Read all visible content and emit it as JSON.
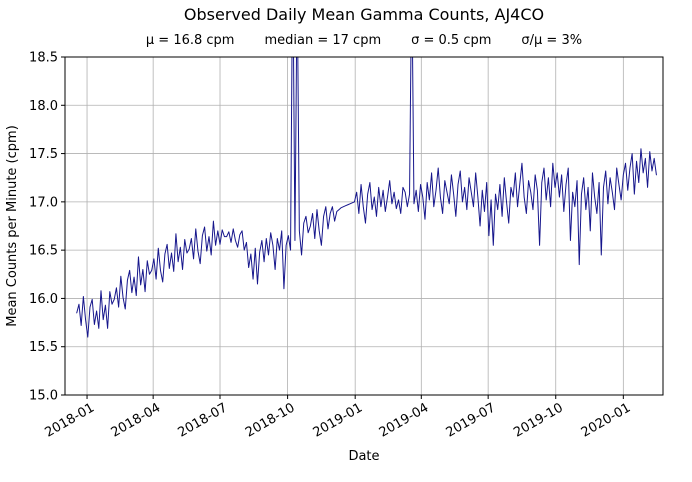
{
  "chart_data": {
    "type": "line",
    "title": "Observed Daily Mean Gamma Counts, AJ4CO",
    "stats": [
      "μ = 16.8 cpm",
      "median = 17 cpm",
      "σ = 0.5 cpm",
      "σ/μ = 3%"
    ],
    "xlabel": "Date",
    "ylabel": "Mean Counts per Minute (cpm)",
    "grid": true,
    "legend": "none",
    "line_color": "#16168c",
    "ylim": [
      15.0,
      18.5
    ],
    "y_ticks": [
      15.0,
      15.5,
      16.0,
      16.5,
      17.0,
      17.5,
      18.0,
      18.5
    ],
    "x_tick_labels": [
      "2018-01",
      "2018-04",
      "2018-07",
      "2018-10",
      "2019-01",
      "2019-04",
      "2019-07",
      "2019-10",
      "2020-01"
    ],
    "x_tick_days": [
      14,
      104,
      195,
      287,
      379,
      469,
      560,
      652,
      744
    ],
    "x_range_days": [
      -16,
      798
    ],
    "x_units": "days since 2017-12-18 (axis spans ~2017-12 to 2020-02)",
    "series": [
      {
        "name": "AJ4CO daily mean gamma counts (cpm), sampled",
        "start_day": 0,
        "step_days": 3,
        "note": "values above 18.5 are spikes clipped at top of axes (2018-10 and 2019-03)",
        "values": [
          15.85,
          15.94,
          15.72,
          16.02,
          15.78,
          15.6,
          15.91,
          15.99,
          15.73,
          15.87,
          15.69,
          16.08,
          15.78,
          15.93,
          15.69,
          16.07,
          15.94,
          15.99,
          16.11,
          15.91,
          16.23,
          16.01,
          15.89,
          16.19,
          16.29,
          16.06,
          16.22,
          16.03,
          16.43,
          16.14,
          16.3,
          16.07,
          16.39,
          16.25,
          16.29,
          16.41,
          16.2,
          16.52,
          16.29,
          16.17,
          16.46,
          16.56,
          16.31,
          16.47,
          16.28,
          16.67,
          16.38,
          16.53,
          16.3,
          16.61,
          16.47,
          16.51,
          16.62,
          16.41,
          16.72,
          16.49,
          16.36,
          16.65,
          16.74,
          16.49,
          16.64,
          16.45,
          16.8,
          16.55,
          16.7,
          16.56,
          16.71,
          16.64,
          16.64,
          16.69,
          16.58,
          16.72,
          16.6,
          16.53,
          16.66,
          16.7,
          16.5,
          16.58,
          16.32,
          16.46,
          16.2,
          16.52,
          16.15,
          16.48,
          16.6,
          16.38,
          16.62,
          16.45,
          16.68,
          16.55,
          16.3,
          16.62,
          16.5,
          16.7,
          16.1,
          16.55,
          16.65,
          16.5,
          19.6,
          16.6,
          19.3,
          16.7,
          16.45,
          16.78,
          16.85,
          16.68,
          16.75,
          16.88,
          16.62,
          16.92,
          16.7,
          16.55,
          16.85,
          16.95,
          16.72,
          16.88,
          16.95,
          16.8,
          16.9,
          16.92,
          16.94,
          16.95,
          16.96,
          16.97,
          16.98,
          16.99,
          17.0,
          17.1,
          16.88,
          17.18,
          16.95,
          16.78,
          17.08,
          17.2,
          16.92,
          17.05,
          16.85,
          17.15,
          16.95,
          17.12,
          16.9,
          17.05,
          17.22,
          16.98,
          17.1,
          16.93,
          17.02,
          16.88,
          17.15,
          17.1,
          16.95,
          17.08,
          19.4,
          16.98,
          17.12,
          16.9,
          17.18,
          17.05,
          16.82,
          17.2,
          17.02,
          17.3,
          16.95,
          17.12,
          17.35,
          17.05,
          16.88,
          17.22,
          17.1,
          16.98,
          17.28,
          17.08,
          16.85,
          17.18,
          17.32,
          17.0,
          17.15,
          16.92,
          17.25,
          17.1,
          16.95,
          17.3,
          17.05,
          16.75,
          17.12,
          16.9,
          17.2,
          16.65,
          17.02,
          16.55,
          17.08,
          16.92,
          17.18,
          16.85,
          17.25,
          17.0,
          16.78,
          17.15,
          17.05,
          17.3,
          16.95,
          17.18,
          17.4,
          17.05,
          16.88,
          17.22,
          17.1,
          16.92,
          17.28,
          17.12,
          16.55,
          17.2,
          17.35,
          17.02,
          17.25,
          16.95,
          17.4,
          17.15,
          17.3,
          17.05,
          17.28,
          16.9,
          17.18,
          17.35,
          16.6,
          17.1,
          16.95,
          17.22,
          16.35,
          17.08,
          17.25,
          16.92,
          17.15,
          16.7,
          17.3,
          17.05,
          16.88,
          17.2,
          16.45,
          17.15,
          17.32,
          16.98,
          17.25,
          17.1,
          16.92,
          17.35,
          17.18,
          17.02,
          17.28,
          17.4,
          17.12,
          17.35,
          17.5,
          17.08,
          17.42,
          17.2,
          17.55,
          17.3,
          17.45,
          17.15,
          17.52,
          17.32,
          17.45,
          17.28
        ]
      }
    ]
  }
}
